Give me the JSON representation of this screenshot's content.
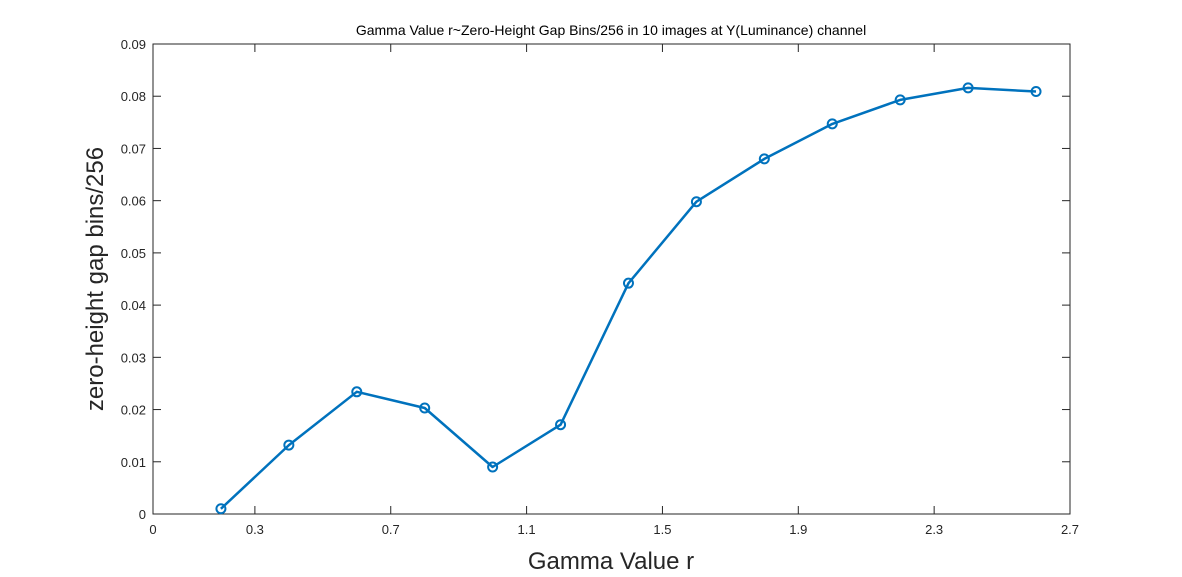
{
  "chart_data": {
    "type": "line",
    "title": "Gamma Value r~Zero-Height Gap Bins/256 in 10 images at Y(Luminance) channel",
    "xlabel": "Gamma Value r",
    "ylabel": "zero-height gap bins/256",
    "xlim": [
      0,
      2.7
    ],
    "ylim": [
      0,
      0.09
    ],
    "xticks": [
      0,
      0.3,
      0.7,
      1.1,
      1.5,
      1.9,
      2.3,
      2.7
    ],
    "xtick_labels": [
      "0",
      "0.3",
      "0.7",
      "1.1",
      "1.5",
      "1.9",
      "2.3",
      "2.7"
    ],
    "yticks": [
      0,
      0.01,
      0.02,
      0.03,
      0.04,
      0.05,
      0.06,
      0.07,
      0.08,
      0.09
    ],
    "ytick_labels": [
      "0",
      "0.01",
      "0.02",
      "0.03",
      "0.04",
      "0.05",
      "0.06",
      "0.07",
      "0.08",
      "0.09"
    ],
    "grid": false,
    "series": [
      {
        "color": "#0072BD",
        "marker": "circle",
        "x": [
          0.2,
          0.4,
          0.6,
          0.8,
          1.0,
          1.2,
          1.4,
          1.6,
          1.8,
          2.0,
          2.2,
          2.4,
          2.6
        ],
        "y": [
          0.001,
          0.0132,
          0.0234,
          0.0203,
          0.009,
          0.0171,
          0.0442,
          0.0598,
          0.068,
          0.0747,
          0.0793,
          0.0816,
          0.0809
        ]
      }
    ]
  }
}
